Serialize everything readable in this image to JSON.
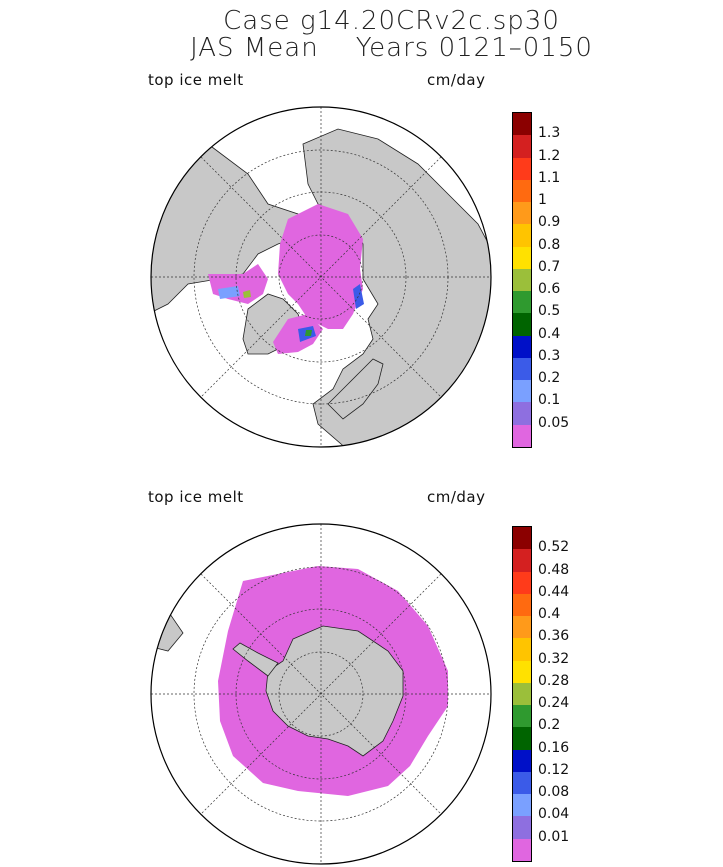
{
  "header": {
    "line1": "Case g14.20CRv2c.sp30",
    "line2": "JAS Mean    Years 0121–0150"
  },
  "panels": [
    {
      "field_label": "top ice melt",
      "units": "cm/day",
      "hemisphere": "north",
      "colorbar_levels": [
        "1.3",
        "1.2",
        "1.1",
        "1",
        "0.9",
        "0.8",
        "0.7",
        "0.6",
        "0.5",
        "0.4",
        "0.3",
        "0.2",
        "0.1",
        "0.05"
      ]
    },
    {
      "field_label": "top ice melt",
      "units": "cm/day",
      "hemisphere": "south",
      "colorbar_levels": [
        "0.52",
        "0.48",
        "0.44",
        "0.4",
        "0.36",
        "0.32",
        "0.28",
        "0.24",
        "0.2",
        "0.16",
        "0.12",
        "0.08",
        "0.04",
        "0.01"
      ]
    }
  ],
  "colorbar_colors": [
    "#8b0000",
    "#d42020",
    "#ff3b1a",
    "#ff6a10",
    "#ff9a1a",
    "#ffc400",
    "#ffe100",
    "#9bbf3a",
    "#2f9a2f",
    "#006400",
    "#0010c8",
    "#3b5be8",
    "#7aa0ff",
    "#8e6fe0",
    "#e066e0"
  ],
  "land_color": "#c8c8c8",
  "ocean_color": "#ffffff"
}
